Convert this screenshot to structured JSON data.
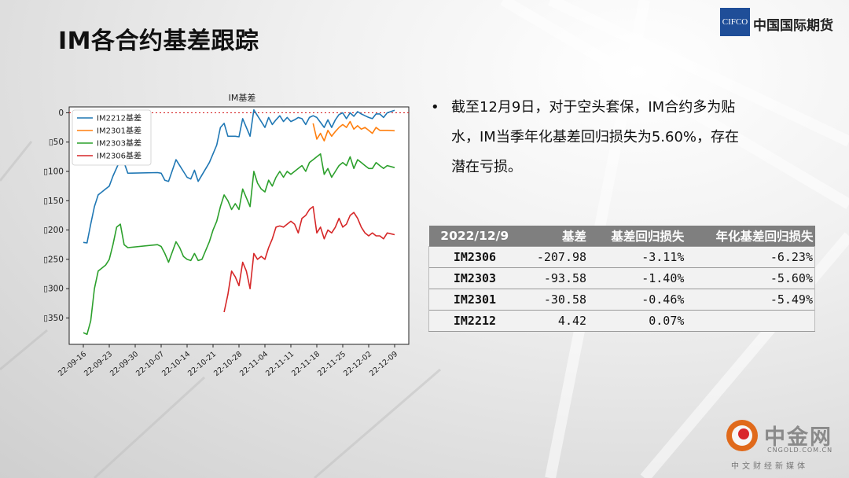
{
  "slide": {
    "title": "IM各合约基差跟踪"
  },
  "brand": {
    "logo_text": "CIFCO",
    "name": "中国国际期货"
  },
  "bullet": {
    "lines": [
      "截至12月9日，对于空头套保，IM合约多为贴",
      "水，IM当季年化基差回归损失为5.60%，存在",
      "潜在亏损。"
    ]
  },
  "table": {
    "headers": [
      "2022/12/9",
      "基差",
      "基差回归损失",
      "年化基差回归损失"
    ],
    "rows": [
      [
        "IM2306",
        "-207.98",
        "-3.11%",
        "-6.23%"
      ],
      [
        "IM2303",
        "-93.58",
        "-1.40%",
        "-5.60%"
      ],
      [
        "IM2301",
        "-30.58",
        "-0.46%",
        "-5.49%"
      ],
      [
        "IM2212",
        "4.42",
        "0.07%",
        ""
      ]
    ]
  },
  "watermark": {
    "name": "中金网",
    "domain": "CNGOLD.COM.CN",
    "sub": "中文财经新媒体"
  },
  "colors": {
    "IM2212": "#1f77b4",
    "IM2301": "#ff7f0e",
    "IM2303": "#2ca02c",
    "IM2306": "#d62728",
    "zero_line": "#d62728"
  },
  "chart_data": {
    "type": "line",
    "title": "IM基差",
    "ylim": [
      -395,
      10
    ],
    "y_ticks": [
      0,
      -50,
      -100,
      -150,
      -200,
      -250,
      -300,
      -350
    ],
    "y_tick_labels": [
      "0",
      "▯50",
      "▯100",
      "▯150",
      "▯200",
      "▯250",
      "▯300",
      "▯350"
    ],
    "x_tick_labels": [
      "22-09-16",
      "22-09-23",
      "22-09-30",
      "22-10-07",
      "22-10-14",
      "22-10-21",
      "22-10-28",
      "22-11-04",
      "22-11-11",
      "22-11-18",
      "22-11-25",
      "22-12-02",
      "22-12-09"
    ],
    "grid": false,
    "legend": "upper-left",
    "reference_line": 0,
    "series": [
      {
        "name": "IM2212基差",
        "color_key": "IM2212",
        "points": [
          [
            "2022-09-16",
            -221
          ],
          [
            "2022-09-17",
            -222
          ],
          [
            "2022-09-18",
            -190
          ],
          [
            "2022-09-19",
            -160
          ],
          [
            "2022-09-20",
            -140
          ],
          [
            "2022-09-22",
            -130
          ],
          [
            "2022-09-23",
            -125
          ],
          [
            "2022-09-24",
            -108
          ],
          [
            "2022-09-26",
            -80
          ],
          [
            "2022-09-27",
            -85
          ],
          [
            "2022-09-28",
            -103
          ],
          [
            "2022-10-06",
            -102
          ],
          [
            "2022-10-07",
            -103
          ],
          [
            "2022-10-08",
            -115
          ],
          [
            "2022-10-09",
            -117
          ],
          [
            "2022-10-11",
            -80
          ],
          [
            "2022-10-12",
            -90
          ],
          [
            "2022-10-13",
            -100
          ],
          [
            "2022-10-14",
            -110
          ],
          [
            "2022-10-15",
            -113
          ],
          [
            "2022-10-16",
            -98
          ],
          [
            "2022-10-17",
            -117
          ],
          [
            "2022-10-20",
            -85
          ],
          [
            "2022-10-21",
            -70
          ],
          [
            "2022-10-22",
            -55
          ],
          [
            "2022-10-23",
            -25
          ],
          [
            "2022-10-24",
            -18
          ],
          [
            "2022-10-25",
            -40
          ],
          [
            "2022-10-27",
            -40
          ],
          [
            "2022-10-28",
            -41
          ],
          [
            "2022-10-29",
            -10
          ],
          [
            "2022-10-31",
            -40
          ],
          [
            "2022-11-01",
            5
          ],
          [
            "2022-11-02",
            -5
          ],
          [
            "2022-11-03",
            -15
          ],
          [
            "2022-11-04",
            -25
          ],
          [
            "2022-11-05",
            -8
          ],
          [
            "2022-11-06",
            -20
          ],
          [
            "2022-11-07",
            -12
          ],
          [
            "2022-11-08",
            -5
          ],
          [
            "2022-11-09",
            -15
          ],
          [
            "2022-11-10",
            -8
          ],
          [
            "2022-11-11",
            -15
          ],
          [
            "2022-11-12",
            -12
          ],
          [
            "2022-11-13",
            -8
          ],
          [
            "2022-11-14",
            -10
          ],
          [
            "2022-11-15",
            -20
          ],
          [
            "2022-11-16",
            -8
          ],
          [
            "2022-11-17",
            -5
          ],
          [
            "2022-11-18",
            -8
          ],
          [
            "2022-11-20",
            -25
          ],
          [
            "2022-11-21",
            -12
          ],
          [
            "2022-11-22",
            -25
          ],
          [
            "2022-11-23",
            -12
          ],
          [
            "2022-11-24",
            -3
          ],
          [
            "2022-11-25",
            0
          ],
          [
            "2022-11-26",
            -10
          ],
          [
            "2022-11-27",
            0
          ],
          [
            "2022-11-28",
            -6
          ],
          [
            "2022-11-29",
            2
          ],
          [
            "2022-11-30",
            -2
          ],
          [
            "2022-12-01",
            -5
          ],
          [
            "2022-12-02",
            -8
          ],
          [
            "2022-12-03",
            -10
          ],
          [
            "2022-12-04",
            -2
          ],
          [
            "2022-12-05",
            -2
          ],
          [
            "2022-12-06",
            -8
          ],
          [
            "2022-12-07",
            0
          ],
          [
            "2022-12-09",
            4.42
          ]
        ]
      },
      {
        "name": "IM2301基差",
        "color_key": "IM2301",
        "points": [
          [
            "2022-11-17",
            -18
          ],
          [
            "2022-11-18",
            -45
          ],
          [
            "2022-11-19",
            -35
          ],
          [
            "2022-11-20",
            -48
          ],
          [
            "2022-11-21",
            -30
          ],
          [
            "2022-11-22",
            -40
          ],
          [
            "2022-11-23",
            -32
          ],
          [
            "2022-11-24",
            -25
          ],
          [
            "2022-11-25",
            -20
          ],
          [
            "2022-11-26",
            -25
          ],
          [
            "2022-11-27",
            -15
          ],
          [
            "2022-11-28",
            -28
          ],
          [
            "2022-11-29",
            -22
          ],
          [
            "2022-11-30",
            -28
          ],
          [
            "2022-12-01",
            -25
          ],
          [
            "2022-12-02",
            -30
          ],
          [
            "2022-12-03",
            -35
          ],
          [
            "2022-12-04",
            -25
          ],
          [
            "2022-12-05",
            -30
          ],
          [
            "2022-12-07",
            -30
          ],
          [
            "2022-12-09",
            -30.58
          ]
        ]
      },
      {
        "name": "IM2303基差",
        "color_key": "IM2303",
        "points": [
          [
            "2022-09-16",
            -375
          ],
          [
            "2022-09-17",
            -378
          ],
          [
            "2022-09-18",
            -355
          ],
          [
            "2022-09-19",
            -300
          ],
          [
            "2022-09-20",
            -270
          ],
          [
            "2022-09-22",
            -260
          ],
          [
            "2022-09-23",
            -250
          ],
          [
            "2022-09-24",
            -225
          ],
          [
            "2022-09-25",
            -195
          ],
          [
            "2022-09-26",
            -190
          ],
          [
            "2022-09-27",
            -225
          ],
          [
            "2022-09-28",
            -230
          ],
          [
            "2022-10-06",
            -225
          ],
          [
            "2022-10-07",
            -228
          ],
          [
            "2022-10-08",
            -240
          ],
          [
            "2022-10-09",
            -255
          ],
          [
            "2022-10-11",
            -220
          ],
          [
            "2022-10-12",
            -230
          ],
          [
            "2022-10-13",
            -245
          ],
          [
            "2022-10-14",
            -250
          ],
          [
            "2022-10-15",
            -252
          ],
          [
            "2022-10-16",
            -240
          ],
          [
            "2022-10-17",
            -252
          ],
          [
            "2022-10-18",
            -250
          ],
          [
            "2022-10-20",
            -220
          ],
          [
            "2022-10-21",
            -200
          ],
          [
            "2022-10-22",
            -185
          ],
          [
            "2022-10-23",
            -160
          ],
          [
            "2022-10-24",
            -140
          ],
          [
            "2022-10-25",
            -150
          ],
          [
            "2022-10-26",
            -165
          ],
          [
            "2022-10-27",
            -155
          ],
          [
            "2022-10-28",
            -165
          ],
          [
            "2022-10-29",
            -130
          ],
          [
            "2022-10-31",
            -160
          ],
          [
            "2022-11-01",
            -100
          ],
          [
            "2022-11-02",
            -120
          ],
          [
            "2022-11-03",
            -130
          ],
          [
            "2022-11-04",
            -135
          ],
          [
            "2022-11-05",
            -115
          ],
          [
            "2022-11-06",
            -125
          ],
          [
            "2022-11-07",
            -110
          ],
          [
            "2022-11-08",
            -100
          ],
          [
            "2022-11-09",
            -110
          ],
          [
            "2022-11-10",
            -100
          ],
          [
            "2022-11-11",
            -105
          ],
          [
            "2022-11-12",
            -100
          ],
          [
            "2022-11-13",
            -95
          ],
          [
            "2022-11-14",
            -90
          ],
          [
            "2022-11-15",
            -100
          ],
          [
            "2022-11-16",
            -85
          ],
          [
            "2022-11-17",
            -80
          ],
          [
            "2022-11-18",
            -75
          ],
          [
            "2022-11-19",
            -70
          ],
          [
            "2022-11-20",
            -105
          ],
          [
            "2022-11-21",
            -95
          ],
          [
            "2022-11-22",
            -110
          ],
          [
            "2022-11-23",
            -100
          ],
          [
            "2022-11-24",
            -90
          ],
          [
            "2022-11-25",
            -85
          ],
          [
            "2022-11-26",
            -90
          ],
          [
            "2022-11-27",
            -75
          ],
          [
            "2022-11-28",
            -95
          ],
          [
            "2022-11-29",
            -80
          ],
          [
            "2022-11-30",
            -85
          ],
          [
            "2022-12-01",
            -90
          ],
          [
            "2022-12-02",
            -95
          ],
          [
            "2022-12-03",
            -95
          ],
          [
            "2022-12-04",
            -85
          ],
          [
            "2022-12-05",
            -90
          ],
          [
            "2022-12-06",
            -95
          ],
          [
            "2022-12-07",
            -90
          ],
          [
            "2022-12-09",
            -93.58
          ]
        ]
      },
      {
        "name": "IM2306基差",
        "color_key": "IM2306",
        "points": [
          [
            "2022-10-24",
            -340
          ],
          [
            "2022-10-25",
            -310
          ],
          [
            "2022-10-26",
            -270
          ],
          [
            "2022-10-27",
            -280
          ],
          [
            "2022-10-28",
            -295
          ],
          [
            "2022-10-29",
            -255
          ],
          [
            "2022-10-30",
            -270
          ],
          [
            "2022-10-31",
            -300
          ],
          [
            "2022-11-01",
            -240
          ],
          [
            "2022-11-02",
            -250
          ],
          [
            "2022-11-03",
            -245
          ],
          [
            "2022-11-04",
            -250
          ],
          [
            "2022-11-05",
            -230
          ],
          [
            "2022-11-06",
            -215
          ],
          [
            "2022-11-07",
            -195
          ],
          [
            "2022-11-08",
            -193
          ],
          [
            "2022-11-09",
            -195
          ],
          [
            "2022-11-10",
            -190
          ],
          [
            "2022-11-11",
            -185
          ],
          [
            "2022-11-12",
            -190
          ],
          [
            "2022-11-13",
            -205
          ],
          [
            "2022-11-14",
            -180
          ],
          [
            "2022-11-15",
            -175
          ],
          [
            "2022-11-16",
            -165
          ],
          [
            "2022-11-17",
            -160
          ],
          [
            "2022-11-18",
            -205
          ],
          [
            "2022-11-19",
            -195
          ],
          [
            "2022-11-20",
            -215
          ],
          [
            "2022-11-21",
            -200
          ],
          [
            "2022-11-22",
            -205
          ],
          [
            "2022-11-23",
            -195
          ],
          [
            "2022-11-24",
            -180
          ],
          [
            "2022-11-25",
            -195
          ],
          [
            "2022-11-26",
            -190
          ],
          [
            "2022-11-27",
            -175
          ],
          [
            "2022-11-28",
            -170
          ],
          [
            "2022-11-29",
            -180
          ],
          [
            "2022-11-30",
            -195
          ],
          [
            "2022-12-01",
            -205
          ],
          [
            "2022-12-02",
            -210
          ],
          [
            "2022-12-03",
            -205
          ],
          [
            "2022-12-04",
            -210
          ],
          [
            "2022-12-05",
            -210
          ],
          [
            "2022-12-06",
            -215
          ],
          [
            "2022-12-07",
            -205
          ],
          [
            "2022-12-09",
            -207.98
          ]
        ]
      }
    ]
  }
}
